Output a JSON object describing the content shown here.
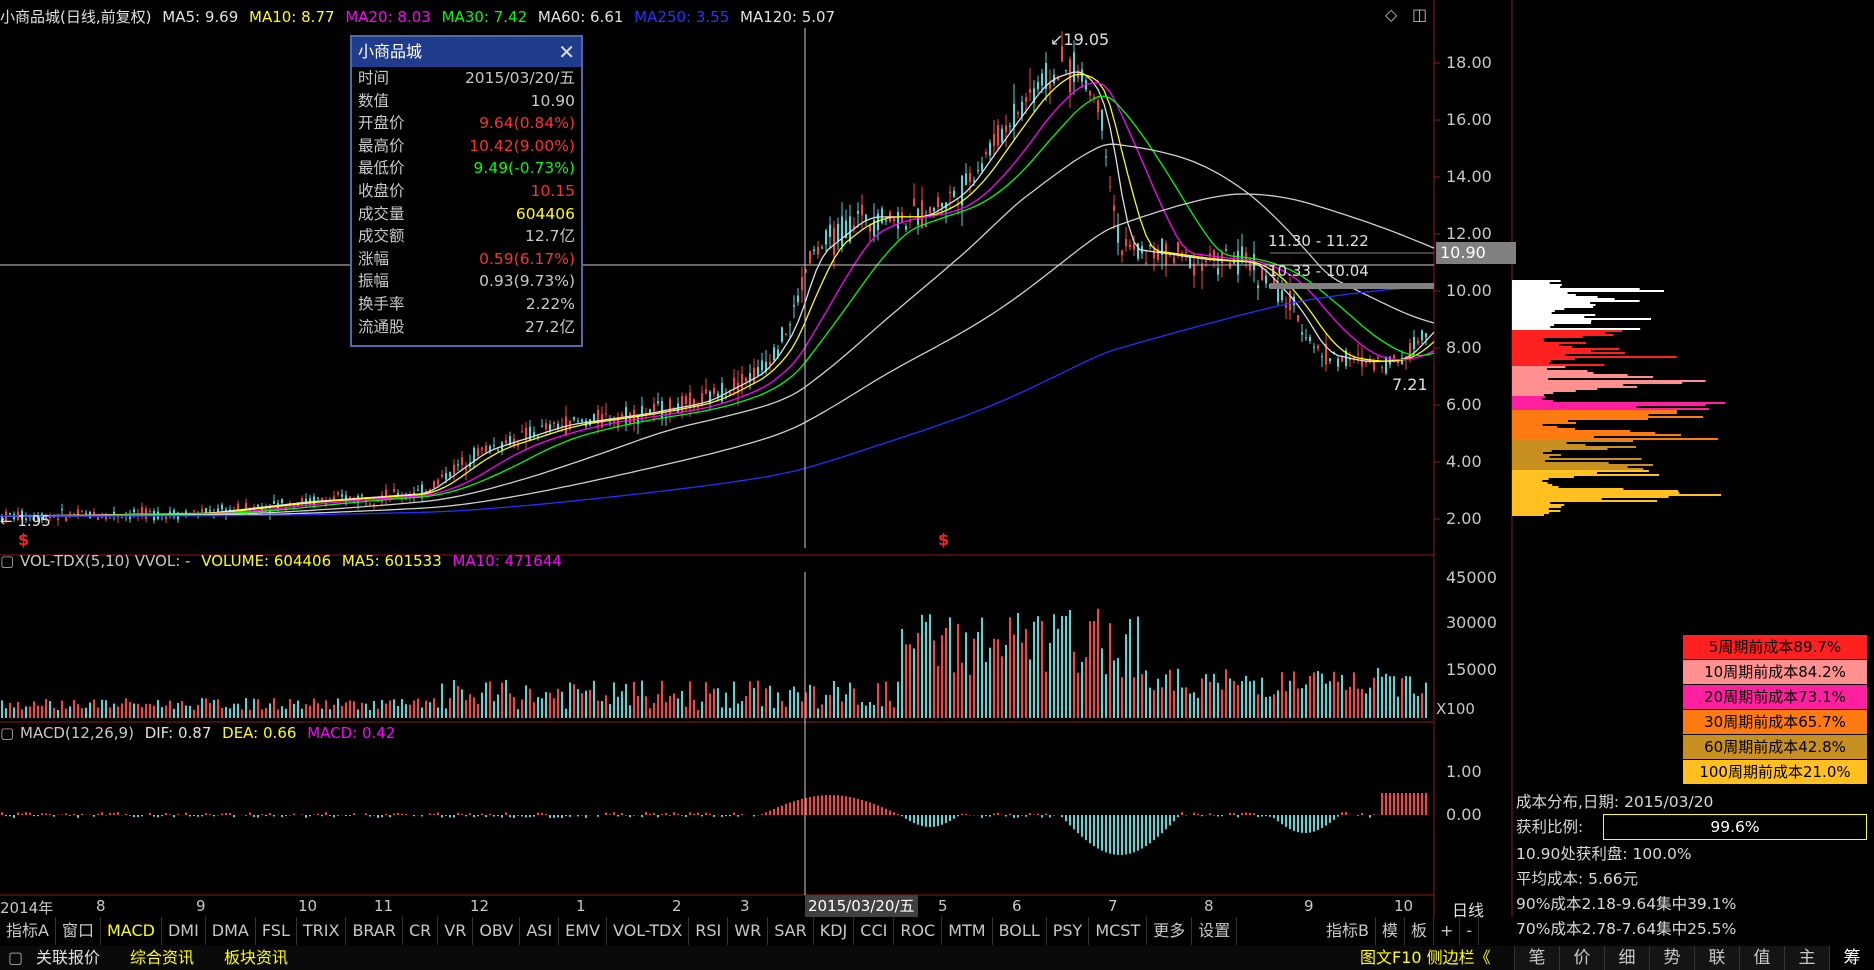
{
  "header": {
    "stock_title": "小商品城(日线,前复权)",
    "ma": [
      {
        "label": "MA5: 9.69",
        "color": "#e0e0e0"
      },
      {
        "label": "MA10: 8.77",
        "color": "#ffff00"
      },
      {
        "label": "MA20: 8.03",
        "color": "#ff00ff"
      },
      {
        "label": "MA30: 7.42",
        "color": "#00ff00"
      },
      {
        "label": "MA60: 6.61",
        "color": "#e0e0e0"
      },
      {
        "label": "MA250: 3.55",
        "color": "#3030ff"
      },
      {
        "label": "MA120: 5.07",
        "color": "#e0e0e0"
      }
    ],
    "icon_diamond": "diamond-icon",
    "icon_window": "window-icon"
  },
  "price_axis": [
    "18.00",
    "16.00",
    "14.00",
    "12.00",
    "10.00",
    "8.00",
    "6.00",
    "4.00",
    "2.00"
  ],
  "annotations": {
    "high": "19.05",
    "low_left": "1.95",
    "low_right": "7.21",
    "range1": "11.30 - 11.22",
    "range2": "10.33 - 10.04",
    "cursor_price": "10.90",
    "signal_mark": "$"
  },
  "info_window": {
    "title": "小商品城",
    "rows": [
      {
        "label": "时间",
        "value": "2015/03/20/五",
        "color": "#c8c8c8"
      },
      {
        "label": "数值",
        "value": "10.90",
        "color": "#c8c8c8"
      },
      {
        "label": "开盘价",
        "value": "9.64(0.84%)",
        "color": "#ff3030"
      },
      {
        "label": "最高价",
        "value": "10.42(9.00%)",
        "color": "#ff3030"
      },
      {
        "label": "最低价",
        "value": "9.49(-0.73%)",
        "color": "#00ff00"
      },
      {
        "label": "收盘价",
        "value": "10.15",
        "color": "#ff3030"
      },
      {
        "label": "成交量",
        "value": "604406",
        "color": "#ffff00"
      },
      {
        "label": "成交额",
        "value": "12.7亿",
        "color": "#c8c8c8"
      },
      {
        "label": "涨幅",
        "value": "0.59(6.17%)",
        "color": "#ff3030"
      },
      {
        "label": "振幅",
        "value": "0.93(9.73%)",
        "color": "#c8c8c8"
      },
      {
        "label": "换手率",
        "value": "2.22%",
        "color": "#c8c8c8"
      },
      {
        "label": "流通股",
        "value": "27.2亿",
        "color": "#c8c8c8"
      }
    ]
  },
  "volume_panel": {
    "title": "VOL-TDX(5,10) VVOL: -",
    "volume": "VOLUME: 604406",
    "ma5": "MA5: 601533",
    "ma10": "MA10: 471644",
    "axis": [
      "45000",
      "30000",
      "15000"
    ],
    "unit": "X100"
  },
  "macd_panel": {
    "title": "MACD(12,26,9)",
    "dif": "DIF: 0.87",
    "dea": "DEA: 0.66",
    "macd": "MACD: 0.42",
    "axis": [
      "1.00",
      "0.00"
    ]
  },
  "time_axis": {
    "labels": [
      "2014年",
      "8",
      "9",
      "10",
      "11",
      "12",
      "1",
      "2",
      "3",
      "5",
      "6",
      "7",
      "8",
      "9",
      "10"
    ],
    "cursor_date": "2015/03/20/五",
    "period": "日线"
  },
  "toolbar": {
    "items": [
      "指标A",
      "窗口",
      "MACD",
      "DMI",
      "DMA",
      "FSL",
      "TRIX",
      "BRAR",
      "CR",
      "VR",
      "OBV",
      "ASI",
      "EMV",
      "VOL-TDX",
      "RSI",
      "WR",
      "SAR",
      "KDJ",
      "CCI",
      "ROC",
      "MTM",
      "BOLL",
      "PSY",
      "MCST",
      "更多",
      "设置"
    ],
    "active": "MACD",
    "right_items": [
      "指标B",
      "模",
      "板",
      "+",
      "-"
    ]
  },
  "bottom_bar": {
    "items": [
      "关联报价",
      "综合资讯",
      "板块资讯"
    ],
    "right_label": "图文F10 侧边栏《",
    "side_tabs": [
      "笔",
      "价",
      "细",
      "势",
      "联",
      "值",
      "主",
      "筹"
    ]
  },
  "cost_distribution": {
    "boxes": [
      {
        "label": "5周期前成本89.7%",
        "color": "#ff2020"
      },
      {
        "label": "10周期前成本84.2%",
        "color": "#ff9090"
      },
      {
        "label": "20周期前成本73.1%",
        "color": "#ff20a0"
      },
      {
        "label": "30周期前成本65.7%",
        "color": "#ff7a10"
      },
      {
        "label": "60周期前成本42.8%",
        "color": "#c89020"
      },
      {
        "label": "100周期前成本21.0%",
        "color": "#ffc020"
      }
    ],
    "date_line": "成本分布,日期: 2015/03/20",
    "profit_label": "获利比例:",
    "profit_value": "99.6%",
    "profit_at": "10.90处获利盘: 100.0%",
    "avg_cost": "平均成本: 5.66元",
    "c90": "90%成本2.18-9.64集中39.1%",
    "c70": "70%成本2.78-7.64集中25.5%"
  }
}
